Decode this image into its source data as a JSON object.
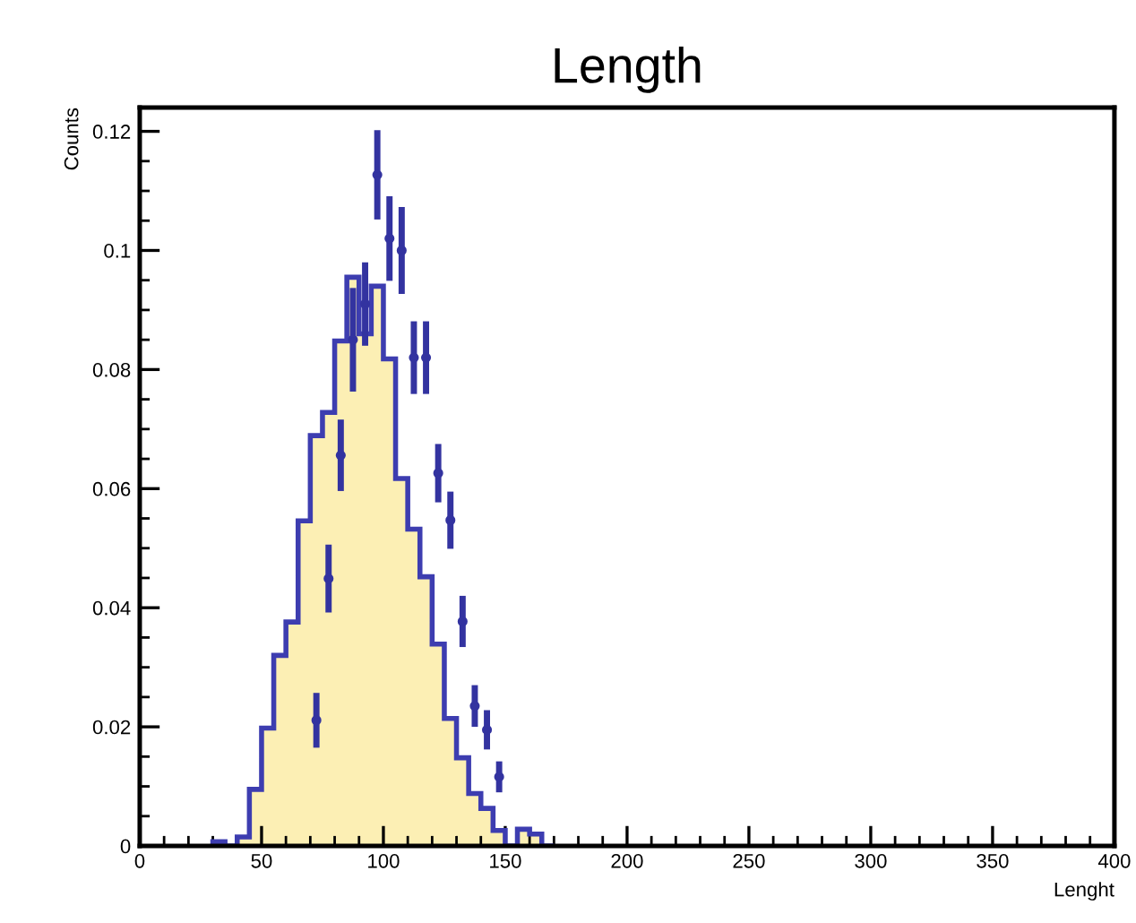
{
  "chart_data": {
    "type": "histogram",
    "title": "Length",
    "xlabel": "Lenght",
    "ylabel": "Counts",
    "xlim": [
      0,
      400
    ],
    "xticks": [
      0,
      50,
      100,
      150,
      200,
      250,
      300,
      350,
      400
    ],
    "ylim": [
      0,
      0.124
    ],
    "yticks": [
      0,
      0.02,
      0.04,
      0.06,
      0.08,
      0.1,
      0.12
    ],
    "grid": false,
    "legend": false,
    "color": "#3d3db0",
    "series": [
      {
        "color": "#fcefb4",
        "bins": [
          30,
          35,
          40,
          45,
          50,
          55,
          60,
          65,
          70,
          75,
          80,
          85,
          90,
          95,
          100,
          105,
          110,
          115,
          120,
          125,
          130,
          135,
          140,
          145,
          150,
          155,
          160,
          165,
          170
        ],
        "values": [
          0.0007,
          0,
          0.0015,
          0.0095,
          0.0198,
          0.032,
          0.0376,
          0.0546,
          0.0689,
          0.0728,
          0.0848,
          0.0955,
          0.086,
          0.094,
          0.0818,
          0.0617,
          0.0532,
          0.0452,
          0.0339,
          0.0214,
          0.0148,
          0.0088,
          0.0063,
          0.0026,
          0,
          0.0028,
          0.002,
          0
        ]
      },
      {
        "type": "scatter",
        "color": "#3333a0",
        "marker": "circle",
        "x": [
          72.5,
          77.5,
          82.5,
          87.5,
          92.5,
          97.5,
          102.5,
          107.5,
          112.5,
          117.5,
          122.5,
          127.5,
          132.5,
          137.5,
          142.5,
          147.5
        ],
        "values": [
          0.0211,
          0.0449,
          0.0656,
          0.085,
          0.091,
          0.1127,
          0.102,
          0.1,
          0.082,
          0.082,
          0.0626,
          0.0547,
          0.0377,
          0.0235,
          0.0195,
          0.0116
        ],
        "errors": [
          0.0046,
          0.0057,
          0.006,
          0.0087,
          0.007,
          0.0075,
          0.0071,
          0.0073,
          0.0061,
          0.0061,
          0.0049,
          0.0048,
          0.0043,
          0.0035,
          0.0033,
          0.0026
        ]
      }
    ]
  }
}
